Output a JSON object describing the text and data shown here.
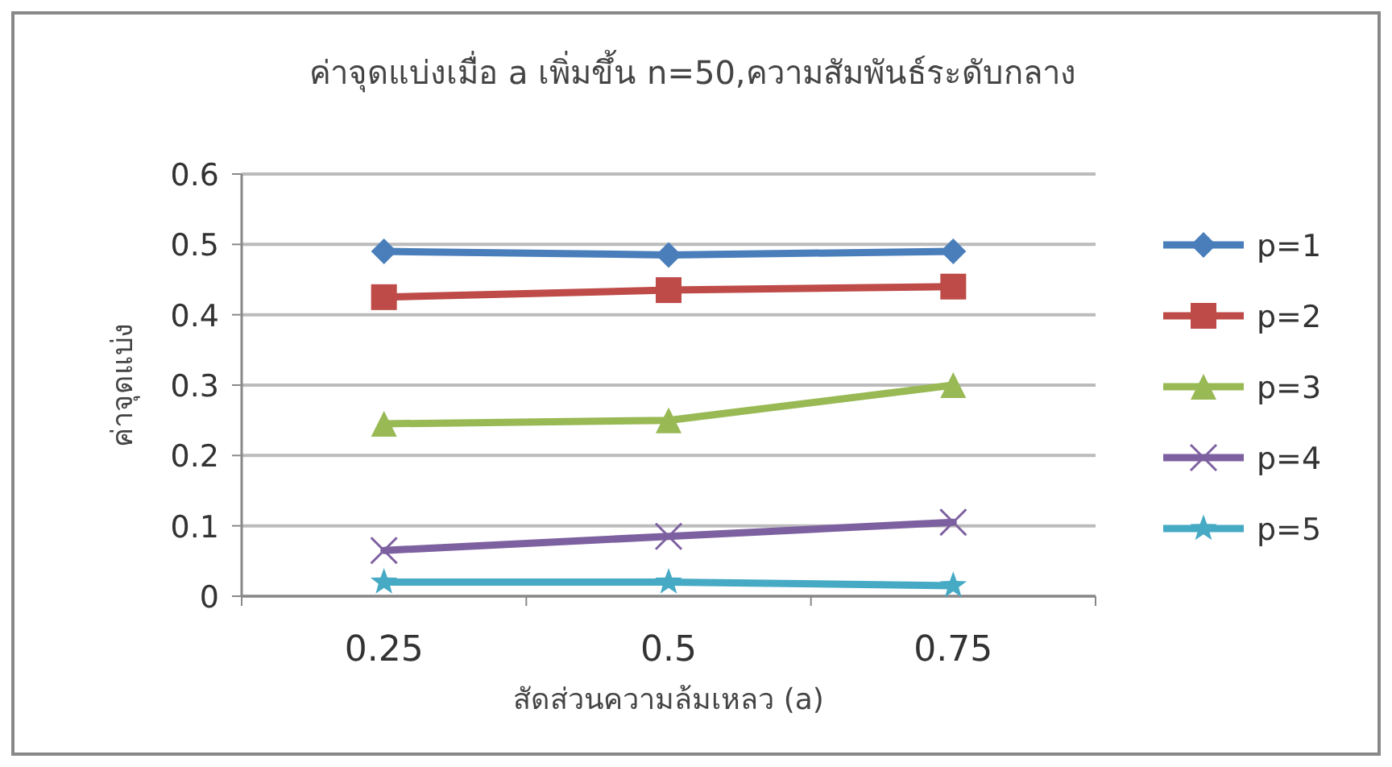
{
  "chart_data": {
    "type": "line",
    "title": "ค่าจุดแบ่งเมื่อ a เพิ่มขึ้น n=50,ความสัมพันธ์ระดับกลาง",
    "xlabel": "สัดส่วนความล้มเหลว (a)",
    "ylabel": "ค่าจุดแบ่ง",
    "categories": [
      "0.25",
      "0.5",
      "0.75"
    ],
    "series": [
      {
        "name": "p=1",
        "color": "#4a7ebb",
        "marker": "diamond",
        "values": [
          0.49,
          0.485,
          0.49
        ]
      },
      {
        "name": "p=2",
        "color": "#be4b48",
        "marker": "square",
        "values": [
          0.425,
          0.435,
          0.44
        ]
      },
      {
        "name": "p=3",
        "color": "#98b954",
        "marker": "triangle",
        "values": [
          0.245,
          0.25,
          0.3
        ]
      },
      {
        "name": "p=4",
        "color": "#7d60a0",
        "marker": "cross",
        "values": [
          0.065,
          0.085,
          0.105
        ]
      },
      {
        "name": "p=5",
        "color": "#46aac5",
        "marker": "star",
        "values": [
          0.02,
          0.02,
          0.015
        ]
      }
    ],
    "ylim": [
      0,
      0.6
    ],
    "yticks": [
      0,
      0.1,
      0.2,
      0.3,
      0.4,
      0.5,
      0.6
    ],
    "grid": "y",
    "legend": "right"
  }
}
